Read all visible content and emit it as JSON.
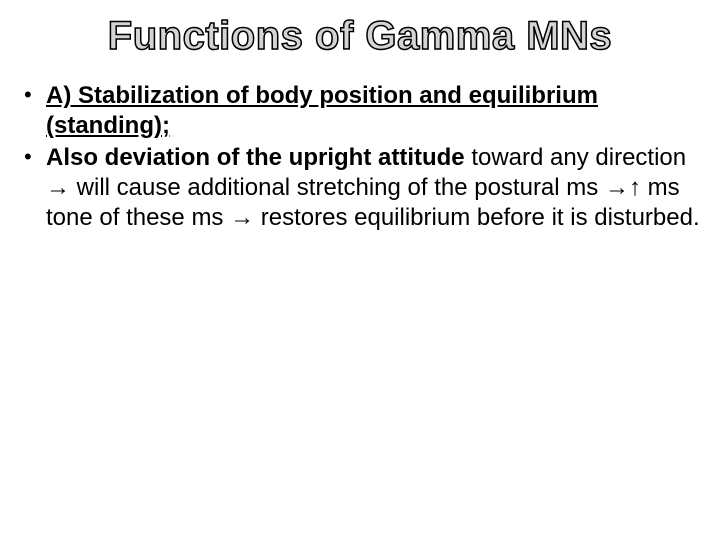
{
  "title": "Functions of Gamma MNs",
  "bullets": [
    {
      "segments": [
        {
          "text": "A) Stabilization of body position and equilibrium (standing);",
          "bold": true,
          "underline": true
        }
      ]
    },
    {
      "segments": [
        {
          "text": "Also deviation of the upright attitude",
          "bold": true,
          "underline": false
        },
        {
          "text": " toward any direction → will cause additional stretching of the postural ms →↑ ms tone of these ms → restores equilibrium before it is disturbed.",
          "bold": false,
          "underline": false
        }
      ]
    }
  ],
  "colors": {
    "background": "#ffffff",
    "text": "#000000",
    "title_gradient_start": "#f0f0f0",
    "title_gradient_end": "#888888"
  },
  "typography": {
    "title_fontsize": 40,
    "body_fontsize": 24,
    "font_family": "Segoe UI"
  }
}
